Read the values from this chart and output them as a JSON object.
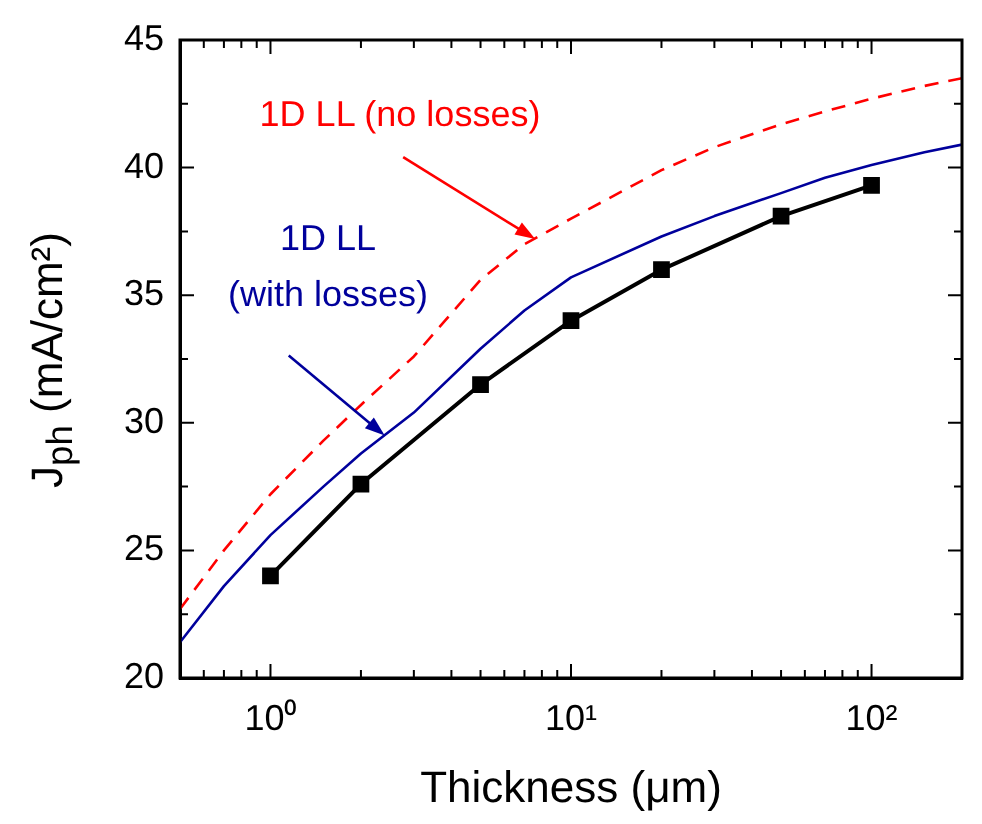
{
  "chart_data": {
    "type": "line",
    "xlabel": "Thickness (μm)",
    "ylabel": "J$_{ph}$ (mA/cm²)",
    "log": "x",
    "legend": false,
    "xlim": [
      0.5,
      200
    ],
    "xticks": [
      {
        "value": 0.5,
        "label": null
      },
      {
        "value": 0.6,
        "label": null
      },
      {
        "value": 0.7,
        "label": null
      },
      {
        "value": 0.8,
        "label": null
      },
      {
        "value": 0.9,
        "label": null
      },
      {
        "value": 1,
        "label": "10⁰"
      },
      {
        "value": 2,
        "label": null
      },
      {
        "value": 3,
        "label": null
      },
      {
        "value": 4,
        "label": null
      },
      {
        "value": 5,
        "label": null
      },
      {
        "value": 6,
        "label": null
      },
      {
        "value": 7,
        "label": null
      },
      {
        "value": 8,
        "label": null
      },
      {
        "value": 9,
        "label": null
      },
      {
        "value": 10,
        "label": "10¹"
      },
      {
        "value": 20,
        "label": null
      },
      {
        "value": 30,
        "label": null
      },
      {
        "value": 40,
        "label": null
      },
      {
        "value": 50,
        "label": null
      },
      {
        "value": 60,
        "label": null
      },
      {
        "value": 70,
        "label": null
      },
      {
        "value": 80,
        "label": null
      },
      {
        "value": 90,
        "label": null
      },
      {
        "value": 100,
        "label": "10²"
      },
      {
        "value": 200,
        "label": null
      }
    ],
    "ylim": [
      20,
      45
    ],
    "yticks": [
      20,
      {
        "value": 22.5,
        "label": null
      },
      25,
      {
        "value": 27.5,
        "label": null
      },
      30,
      {
        "value": 32.5,
        "label": null
      },
      35,
      {
        "value": 37.5,
        "label": null
      },
      40,
      {
        "value": 42.5,
        "label": null
      },
      45
    ],
    "series": [
      {
        "color": "#000000",
        "marker": "square",
        "line_style": "solid",
        "x": [
          1,
          2,
          5,
          10,
          20,
          50,
          100
        ],
        "values": [
          24.0,
          27.6,
          31.5,
          34.0,
          36.0,
          38.1,
          39.3
        ]
      },
      {
        "color": "#00009c",
        "marker": "none",
        "line_style": "solid",
        "x": [
          0.5,
          0.7,
          1,
          1.5,
          2,
          3,
          5,
          7,
          10,
          20,
          30,
          50,
          70,
          100,
          150,
          200
        ],
        "values": [
          21.4,
          23.6,
          25.6,
          27.5,
          28.8,
          30.4,
          32.9,
          34.4,
          35.7,
          37.3,
          38.1,
          39.0,
          39.6,
          40.1,
          40.6,
          40.9
        ]
      },
      {
        "color": "#ff0000",
        "marker": "none",
        "line_style": "dashed",
        "x": [
          0.5,
          0.7,
          1,
          1.5,
          2,
          3,
          5,
          7,
          10,
          20,
          30,
          50,
          70,
          100,
          150,
          200
        ],
        "values": [
          22.7,
          25.0,
          27.2,
          29.3,
          30.7,
          32.6,
          35.6,
          37.0,
          38.0,
          39.9,
          40.8,
          41.7,
          42.2,
          42.7,
          43.2,
          43.5
        ]
      }
    ],
    "annotations": [
      {
        "text": "1D LL (no losses)",
        "x": 7.6,
        "y": 37.2
      },
      {
        "text": "1D LL\n(with losses)",
        "x": 2.4,
        "y": 29.5
      }
    ]
  }
}
